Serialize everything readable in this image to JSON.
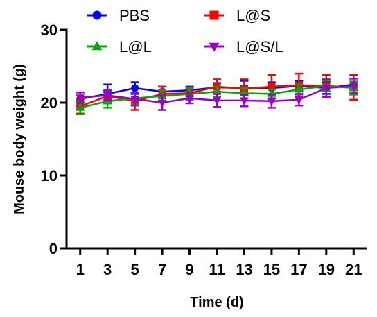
{
  "chart_data": {
    "type": "line",
    "title": "",
    "xlabel": "Time (d)",
    "ylabel": "Mouse body weight (g)",
    "x": [
      1,
      3,
      5,
      7,
      9,
      11,
      13,
      15,
      17,
      19,
      21
    ],
    "xticks": [
      "1",
      "3",
      "5",
      "7",
      "9",
      "11",
      "13",
      "15",
      "17",
      "19",
      "21"
    ],
    "xlim": [
      0,
      22
    ],
    "ylim": [
      0,
      30
    ],
    "yticks": [
      "0",
      "10",
      "20",
      "30"
    ],
    "legend_position": "top",
    "grid": false,
    "series": [
      {
        "name": "PBS",
        "color": "#0000ff",
        "marker": "circle",
        "values": [
          20.5,
          21.2,
          22.0,
          21.5,
          21.7,
          22.1,
          22.0,
          22.0,
          22.3,
          22.0,
          22.5
        ],
        "errors": [
          0.9,
          1.3,
          0.8,
          0.7,
          0.5,
          0.6,
          1.0,
          0.8,
          0.7,
          0.8,
          0.8
        ]
      },
      {
        "name": "L@S",
        "color": "#ff0000",
        "marker": "square",
        "values": [
          19.5,
          20.9,
          20.2,
          21.2,
          21.3,
          22.2,
          21.9,
          22.2,
          22.4,
          22.3,
          22.1
        ],
        "errors": [
          1.0,
          0.8,
          1.2,
          1.0,
          0.8,
          1.0,
          1.3,
          1.6,
          1.6,
          1.5,
          1.7
        ]
      },
      {
        "name": "L@L",
        "color": "#00aa00",
        "marker": "triangle-up",
        "values": [
          19.3,
          20.2,
          20.6,
          20.9,
          21.2,
          21.5,
          21.3,
          21.2,
          21.8,
          22.3,
          22.0
        ],
        "errors": [
          0.9,
          0.9,
          0.8,
          0.8,
          0.8,
          0.7,
          0.7,
          0.6,
          0.7,
          0.7,
          0.9
        ]
      },
      {
        "name": "L@S/L",
        "color": "#9900cc",
        "marker": "triangle-down",
        "values": [
          20.7,
          21.0,
          20.5,
          20.0,
          20.6,
          20.3,
          20.3,
          20.2,
          20.4,
          22.0,
          22.3
        ],
        "errors": [
          0.7,
          0.6,
          0.9,
          1.0,
          0.7,
          0.9,
          0.8,
          0.9,
          0.8,
          1.2,
          1.0
        ]
      }
    ]
  }
}
